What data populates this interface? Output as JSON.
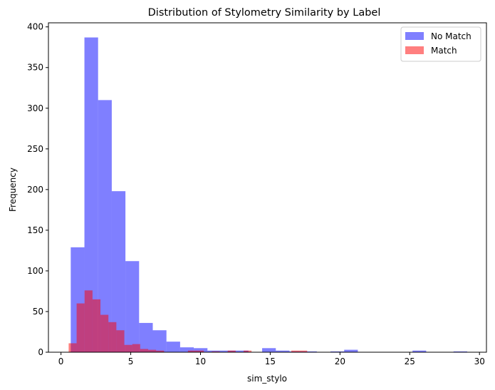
{
  "chart_data": {
    "type": "bar",
    "subtype": "histogram",
    "title": "Distribution of Stylometry Similarity by Label",
    "xlabel": "sim_stylo",
    "ylabel": "Frequency",
    "xlim": [
      -0.9,
      30.5
    ],
    "ylim": [
      0,
      405
    ],
    "xticks": [
      0,
      5,
      10,
      15,
      20,
      25,
      30
    ],
    "yticks": [
      0,
      50,
      100,
      150,
      200,
      250,
      300,
      350,
      400
    ],
    "grid": false,
    "legend_position": "top-right",
    "series": [
      {
        "name": "No Match",
        "color": "#0000ff",
        "alpha": 0.5,
        "bin_edges": [
          0.7,
          1.68,
          2.66,
          3.64,
          4.62,
          5.6,
          6.58,
          7.56,
          8.54,
          9.52,
          10.5,
          11.48,
          12.46,
          13.44,
          14.42,
          15.4,
          16.38,
          17.36,
          18.34,
          19.32,
          20.3,
          21.28,
          22.26,
          23.24,
          24.22,
          25.2,
          26.18,
          27.16,
          28.14,
          29.12
        ],
        "counts": [
          129,
          387,
          310,
          198,
          112,
          36,
          27,
          13,
          6,
          5,
          2,
          2,
          2,
          0,
          5,
          2,
          1,
          1,
          0,
          1,
          3,
          0,
          0,
          0,
          0,
          2,
          0,
          0,
          1
        ]
      },
      {
        "name": "Match",
        "color": "#ff0000",
        "alpha": 0.5,
        "bin_edges": [
          0.55,
          1.12,
          1.69,
          2.26,
          2.83,
          3.4,
          3.97,
          4.54,
          5.11,
          5.68,
          6.25,
          6.82,
          7.39,
          7.96,
          8.53,
          9.1,
          9.67,
          10.24,
          10.81,
          11.38,
          11.95,
          12.52,
          13.09,
          13.66,
          14.23,
          14.8,
          15.37,
          15.94,
          16.51,
          17.08,
          17.65
        ],
        "counts": [
          11,
          60,
          76,
          65,
          46,
          37,
          27,
          9,
          10,
          4,
          3,
          2,
          0,
          0,
          0,
          2,
          2,
          0,
          1,
          0,
          2,
          0,
          2,
          0,
          0,
          0,
          0,
          0,
          2,
          2
        ]
      }
    ]
  }
}
